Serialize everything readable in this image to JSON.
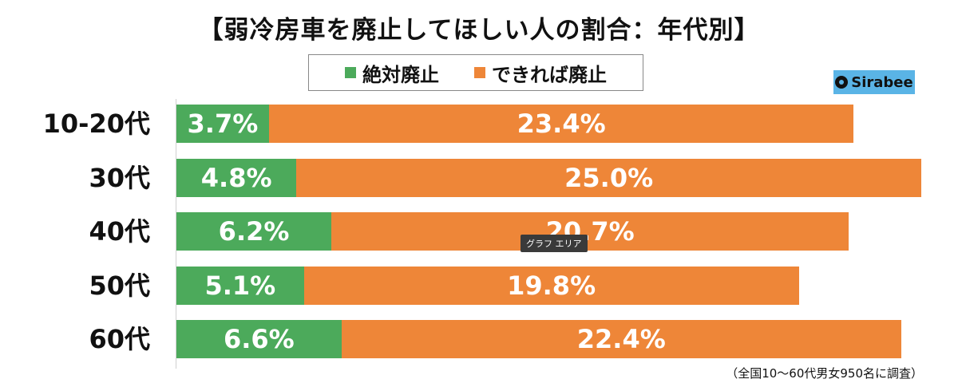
{
  "title": "【弱冷房車を廃止してほしい人の割合：年代別】",
  "logo_text": "Sirabee",
  "tooltip": "グラフ エリア",
  "footnote": "（全国10～60代男女950名に調査）",
  "colors": {
    "green": "#4caa5b",
    "orange": "#ee8638"
  },
  "chart_data": {
    "type": "bar",
    "orientation": "horizontal",
    "stacked": true,
    "title": "【弱冷房車を廃止してほしい人の割合：年代別】",
    "categories": [
      "10-20代",
      "30代",
      "40代",
      "50代",
      "60代"
    ],
    "series": [
      {
        "name": "絶対廃止",
        "color": "#4caa5b",
        "values": [
          3.7,
          4.8,
          6.2,
          5.1,
          6.6
        ],
        "labels": [
          "3.7%",
          "4.8%",
          "6.2%",
          "5.1%",
          "6.6%"
        ]
      },
      {
        "name": "できれば廃止",
        "color": "#ee8638",
        "values": [
          23.4,
          25.0,
          20.7,
          19.8,
          22.4
        ],
        "labels": [
          "23.4%",
          "25.0%",
          "20.7%",
          "19.8%",
          "22.4%"
        ]
      }
    ],
    "xlim": [
      0,
      29.8
    ],
    "legend_position": "top-center",
    "grid": false
  }
}
